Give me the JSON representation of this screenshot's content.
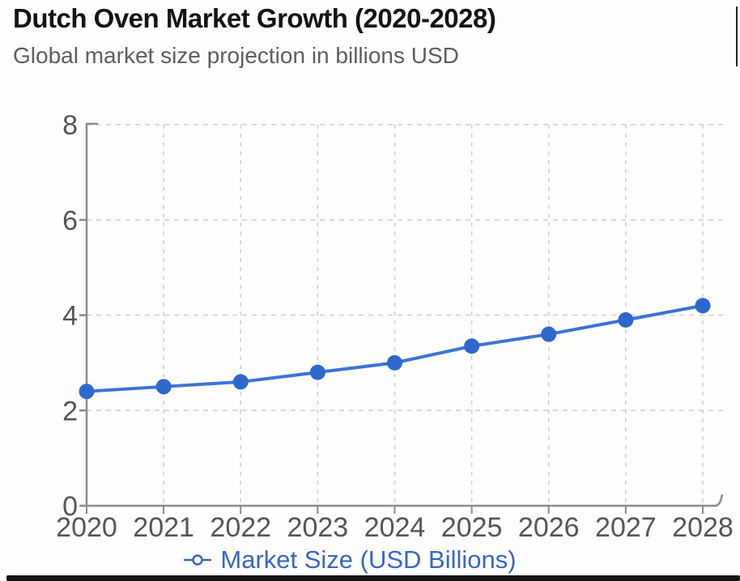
{
  "header": {
    "title": "Dutch Oven Market Growth (2020-2028)",
    "subtitle": "Global market size projection in billions USD"
  },
  "legend": {
    "label": "Market Size (USD Billions)",
    "marker": "line-with-open-circle"
  },
  "colors": {
    "line": "#3c74d3",
    "point": "#2e68cd",
    "legend_text": "#3767c5",
    "title_text": "#141414",
    "subtitle_text": "#5e5e5e",
    "axis": "#8c8c8c",
    "tick_label": "#565656",
    "gridline": "#cfcfcf",
    "background": "#fdfdfc",
    "border_artifact": "#161616"
  },
  "chart_data": {
    "type": "line",
    "title": "Dutch Oven Market Growth (2020-2028)",
    "subtitle": "Global market size projection in billions USD",
    "categories": [
      "2020",
      "2021",
      "2022",
      "2023",
      "2024",
      "2025",
      "2026",
      "2027",
      "2028"
    ],
    "series": [
      {
        "name": "Market Size (USD Billions)",
        "values": [
          2.4,
          2.5,
          2.6,
          2.8,
          3.0,
          3.35,
          3.6,
          3.9,
          4.2
        ]
      }
    ],
    "xlabel": "",
    "ylabel": "",
    "ylim": [
      0,
      8
    ],
    "yticks": [
      0,
      2,
      4,
      6,
      8
    ],
    "grid": true,
    "grid_style": "dashed",
    "marker": "circle",
    "legend_position": "bottom"
  }
}
